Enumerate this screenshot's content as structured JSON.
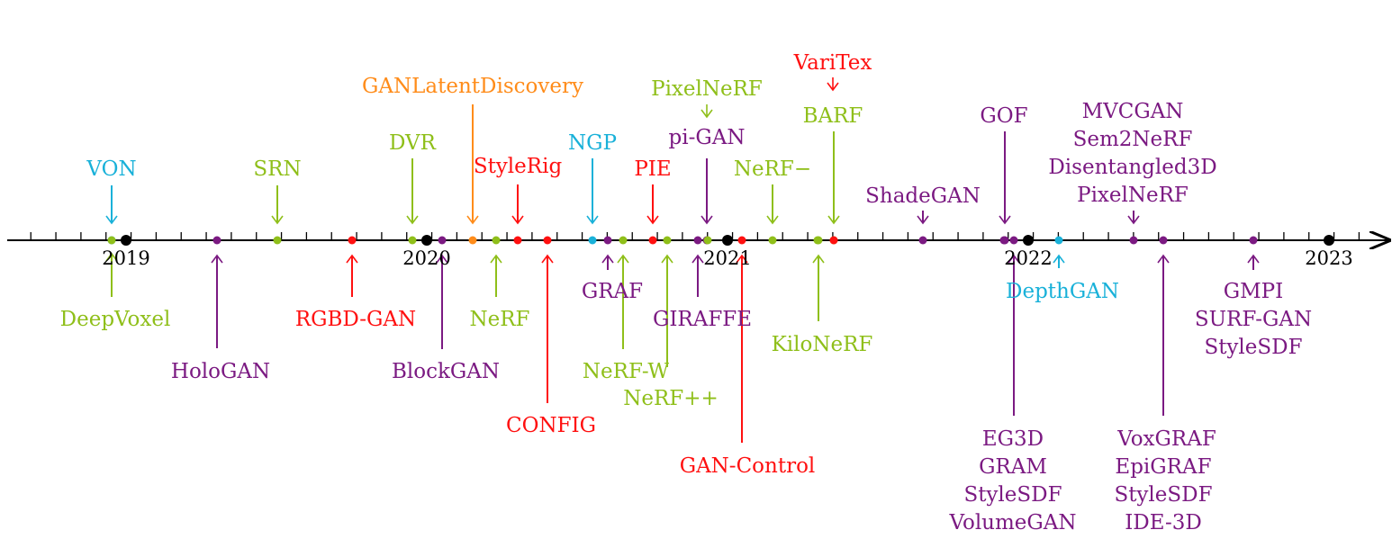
{
  "colors": {
    "green": "#8fbf1a",
    "purple": "#7b1a82",
    "red": "#ff1010",
    "cyan": "#19b1d9",
    "orange": "#ff8c1a",
    "black": "#000000"
  },
  "axis": {
    "start": 2018.6,
    "end": 2023.2,
    "minor_step": 0.0833333
  },
  "years": [
    "2019",
    "2020",
    "2021",
    "2022",
    "2023"
  ],
  "events": [
    {
      "id": "von",
      "t": 2018.95,
      "side": "above",
      "color": "cyan",
      "labels": [
        "VON"
      ]
    },
    {
      "id": "deepvoxel",
      "t": 2018.95,
      "side": "below",
      "color": "green",
      "labels": [
        "DeepVoxel"
      ]
    },
    {
      "id": "hologan",
      "t": 2019.3,
      "side": "below",
      "color": "purple",
      "labels": [
        "HoloGAN"
      ]
    },
    {
      "id": "srn",
      "t": 2019.5,
      "side": "above",
      "color": "green",
      "labels": [
        "SRN"
      ]
    },
    {
      "id": "rgbd-gan",
      "t": 2019.75,
      "side": "below",
      "color": "red",
      "labels": [
        "RGBD-GAN"
      ]
    },
    {
      "id": "dvr",
      "t": 2019.95,
      "side": "above",
      "color": "green",
      "labels": [
        "DVR"
      ]
    },
    {
      "id": "blockgan",
      "t": 2020.05,
      "side": "below",
      "color": "purple",
      "labels": [
        "BlockGAN"
      ]
    },
    {
      "id": "ganlatentdiscovery",
      "t": 2020.15,
      "side": "above",
      "color": "orange",
      "labels": [
        "GANLatentDiscovery"
      ]
    },
    {
      "id": "nerf",
      "t": 2020.23,
      "side": "below",
      "color": "green",
      "labels": [
        "NeRF"
      ]
    },
    {
      "id": "stylerig",
      "t": 2020.3,
      "side": "above",
      "color": "red",
      "labels": [
        "StyleRig"
      ]
    },
    {
      "id": "config",
      "t": 2020.4,
      "side": "below",
      "color": "red",
      "labels": [
        "CONFIG"
      ]
    },
    {
      "id": "ngp",
      "t": 2020.55,
      "side": "above",
      "color": "cyan",
      "labels": [
        "NGP"
      ]
    },
    {
      "id": "graf",
      "t": 2020.6,
      "side": "below",
      "color": "purple",
      "labels": [
        "GRAF"
      ]
    },
    {
      "id": "nerf-w",
      "t": 2020.65,
      "side": "below",
      "color": "green",
      "labels": [
        "NeRF-W"
      ]
    },
    {
      "id": "pie",
      "t": 2020.75,
      "side": "above",
      "color": "red",
      "labels": [
        "PIE"
      ]
    },
    {
      "id": "nerfpp",
      "t": 2020.8,
      "side": "below",
      "color": "green",
      "labels": [
        "NeRF++"
      ]
    },
    {
      "id": "giraffe",
      "t": 2020.9,
      "side": "below",
      "color": "purple",
      "labels": [
        "GIRAFFE"
      ]
    },
    {
      "id": "pigan-pixelnerf",
      "t": 2020.93,
      "side": "above",
      "color": "purple",
      "labels": [
        "pi-GAN"
      ]
    },
    {
      "id": "gan-control",
      "t": 2021.05,
      "side": "below",
      "color": "red",
      "labels": [
        "GAN-Control"
      ]
    },
    {
      "id": "nerf-minus",
      "t": 2021.15,
      "side": "above",
      "color": "green",
      "labels": [
        "NeRF−"
      ]
    },
    {
      "id": "kilonerf",
      "t": 2021.3,
      "side": "below",
      "color": "green",
      "labels": [
        "KiloNeRF"
      ]
    },
    {
      "id": "barf",
      "t": 2021.35,
      "side": "above",
      "color": "green",
      "labels": [
        "BARF"
      ]
    },
    {
      "id": "shadegan",
      "t": 2021.65,
      "side": "above",
      "color": "purple",
      "labels": [
        "ShadeGAN"
      ]
    },
    {
      "id": "gof",
      "t": 2021.92,
      "side": "above",
      "color": "purple",
      "labels": [
        "GOF"
      ]
    },
    {
      "id": "eg3d",
      "t": 2021.95,
      "side": "below",
      "color": "purple",
      "labels": [
        "EG3D",
        "GRAM",
        "StyleSDF",
        "VolumeGAN"
      ]
    },
    {
      "id": "depthgan",
      "t": 2022.1,
      "side": "below",
      "color": "cyan",
      "labels": [
        "DepthGAN"
      ]
    },
    {
      "id": "mvcgan",
      "t": 2022.35,
      "side": "above",
      "color": "purple",
      "labels": [
        "MVCGAN",
        "Sem2NeRF",
        "Disentangled3D",
        "PixelNeRF"
      ]
    },
    {
      "id": "voxgraf",
      "t": 2022.45,
      "side": "below",
      "color": "purple",
      "labels": [
        "VoxGRAF",
        "EpiGRAF",
        "StyleSDF",
        "IDE-3D"
      ]
    },
    {
      "id": "gmpi",
      "t": 2022.75,
      "side": "below",
      "color": "purple",
      "labels": [
        "GMPI",
        "SURF-GAN",
        "StyleSDF"
      ]
    }
  ],
  "extra_labels": [
    {
      "id": "pixelnerf-top",
      "color": "green",
      "text": "PixelNeRF",
      "extra_dot_t": 2020.96
    },
    {
      "id": "varitex",
      "color": "red",
      "text": "VariTex",
      "extra_dot_t": 2021.38
    }
  ]
}
